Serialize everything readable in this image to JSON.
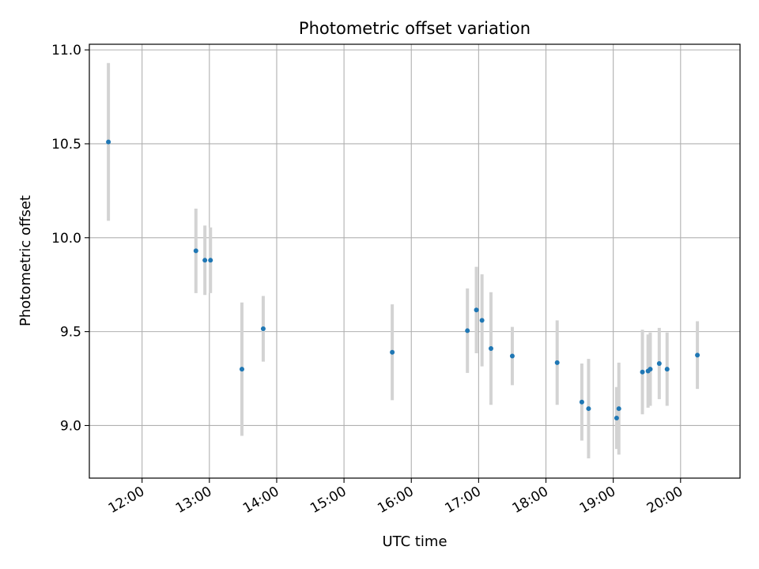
{
  "chart_data": {
    "type": "scatter",
    "title": "Photometric offset variation",
    "xlabel": "UTC time",
    "ylabel": "Photometric offset",
    "x_ticks": [
      "12:00",
      "13:00",
      "14:00",
      "15:00",
      "16:00",
      "17:00",
      "18:00",
      "19:00",
      "20:00"
    ],
    "y_ticks": [
      "9.0",
      "9.5",
      "10.0",
      "10.5",
      "11.0"
    ],
    "xlim": [
      "11:13",
      "20:53"
    ],
    "ylim": [
      8.72,
      11.03
    ],
    "grid": true,
    "series": [
      {
        "marker_color": "#1f77b4",
        "errorbar_color": "#d3d3d3",
        "points": [
          {
            "x": "11:30",
            "y": 10.51,
            "yerr": 0.42
          },
          {
            "x": "12:48",
            "y": 9.93,
            "yerr": 0.225
          },
          {
            "x": "12:56",
            "y": 9.88,
            "yerr": 0.185
          },
          {
            "x": "13:01",
            "y": 9.88,
            "yerr": 0.175
          },
          {
            "x": "13:29",
            "y": 9.3,
            "yerr": 0.355
          },
          {
            "x": "13:48",
            "y": 9.515,
            "yerr": 0.175
          },
          {
            "x": "15:43",
            "y": 9.39,
            "yerr": 0.255
          },
          {
            "x": "16:50",
            "y": 9.505,
            "yerr": 0.225
          },
          {
            "x": "16:58",
            "y": 9.615,
            "yerr": 0.23
          },
          {
            "x": "17:03",
            "y": 9.56,
            "yerr": 0.245
          },
          {
            "x": "17:11",
            "y": 9.41,
            "yerr": 0.3
          },
          {
            "x": "17:30",
            "y": 9.37,
            "yerr": 0.155
          },
          {
            "x": "18:10",
            "y": 9.335,
            "yerr": 0.225
          },
          {
            "x": "18:32",
            "y": 9.125,
            "yerr": 0.205
          },
          {
            "x": "18:38",
            "y": 9.09,
            "yerr": 0.265
          },
          {
            "x": "19:03",
            "y": 9.04,
            "yerr": 0.165
          },
          {
            "x": "19:05",
            "y": 9.09,
            "yerr": 0.245
          },
          {
            "x": "19:26",
            "y": 9.285,
            "yerr": 0.225
          },
          {
            "x": "19:31",
            "y": 9.29,
            "yerr": 0.195
          },
          {
            "x": "19:33",
            "y": 9.3,
            "yerr": 0.195
          },
          {
            "x": "19:41",
            "y": 9.33,
            "yerr": 0.19
          },
          {
            "x": "19:48",
            "y": 9.3,
            "yerr": 0.195
          },
          {
            "x": "20:15",
            "y": 9.375,
            "yerr": 0.18
          }
        ]
      }
    ]
  }
}
